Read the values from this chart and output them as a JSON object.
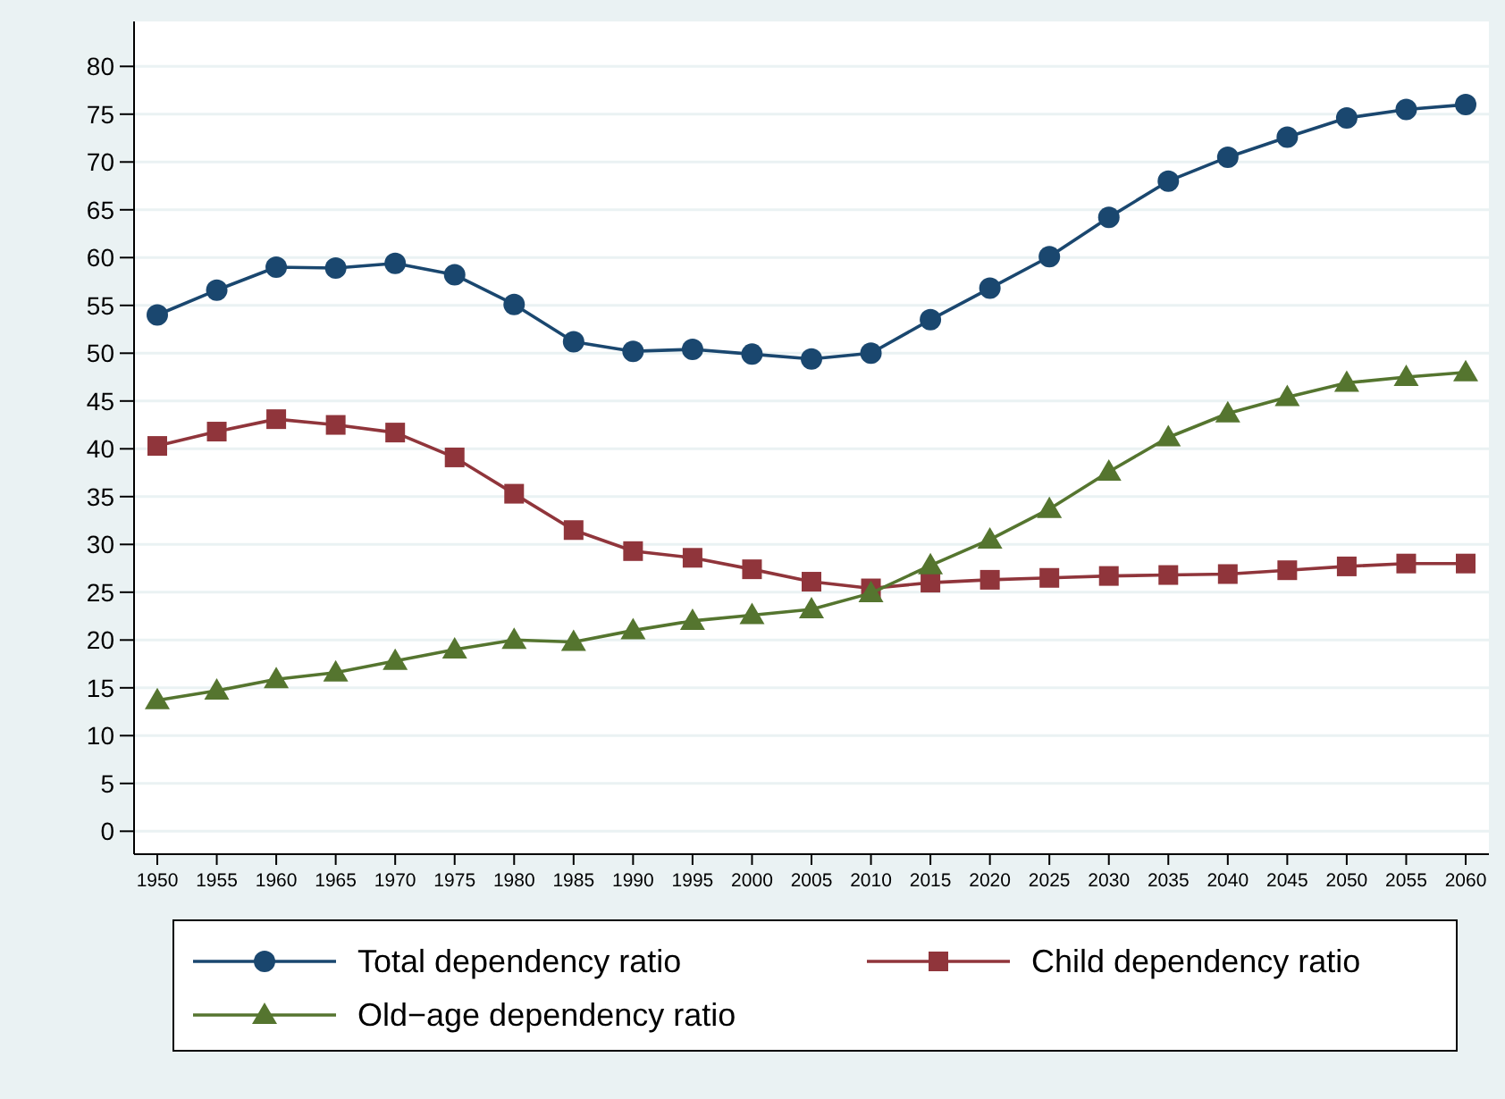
{
  "chart_data": {
    "type": "line",
    "categories": [
      "1950",
      "1955",
      "1960",
      "1965",
      "1970",
      "1975",
      "1980",
      "1985",
      "1990",
      "1995",
      "2000",
      "2005",
      "2010",
      "2015",
      "2020",
      "2025",
      "2030",
      "2035",
      "2040",
      "2045",
      "2050",
      "2055",
      "2060"
    ],
    "ylim": [
      -2.4,
      84.7
    ],
    "yticks": [
      0,
      5,
      10,
      15,
      20,
      25,
      30,
      35,
      40,
      45,
      50,
      55,
      60,
      65,
      70,
      75,
      80
    ],
    "grid": "y",
    "legend": "bottom",
    "series": [
      {
        "name": "Total dependency ratio",
        "color": "#1a476f",
        "marker": "circle",
        "values": [
          54,
          56.6,
          59,
          58.9,
          59.4,
          58.2,
          55.1,
          51.2,
          50.2,
          50.4,
          49.9,
          49.4,
          50,
          53.5,
          56.8,
          60.1,
          64.2,
          68,
          70.5,
          72.6,
          74.6,
          75.5,
          76
        ]
      },
      {
        "name": "Child dependency ratio",
        "color": "#90353b",
        "marker": "square",
        "values": [
          40.3,
          41.8,
          43.1,
          42.5,
          41.7,
          39.1,
          35.3,
          31.5,
          29.3,
          28.6,
          27.4,
          26.1,
          25.4,
          26,
          26.3,
          26.5,
          26.7,
          26.8,
          26.9,
          27.3,
          27.7,
          28,
          28
        ]
      },
      {
        "name": "Old−age dependency ratio",
        "color": "#55752f",
        "marker": "triangle",
        "values": [
          13.7,
          14.7,
          15.9,
          16.6,
          17.8,
          19,
          20,
          19.8,
          21,
          22,
          22.6,
          23.2,
          24.9,
          27.8,
          30.5,
          33.7,
          37.6,
          41.2,
          43.7,
          45.4,
          46.9,
          47.5,
          48
        ]
      }
    ]
  }
}
